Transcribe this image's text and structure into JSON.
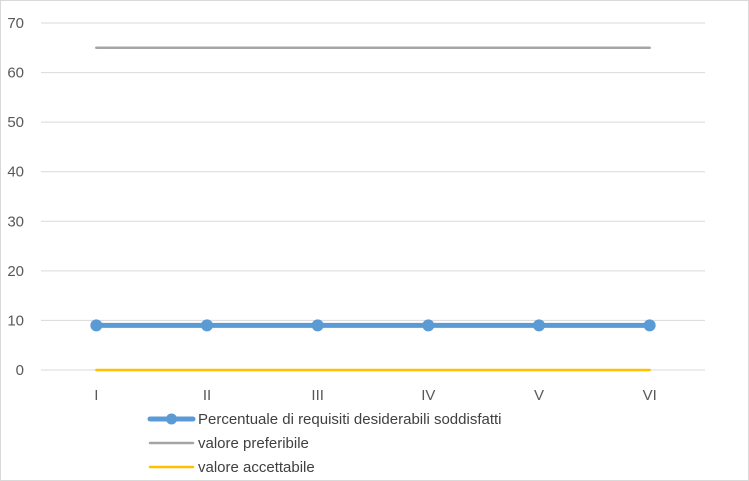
{
  "chart_data": {
    "type": "line",
    "categories": [
      "I",
      "II",
      "III",
      "IV",
      "V",
      "VI"
    ],
    "ylim": [
      0,
      70
    ],
    "yticks": [
      0,
      10,
      20,
      30,
      40,
      50,
      60,
      70
    ],
    "grid": true,
    "legend_position": "bottom",
    "series": [
      {
        "name": "Percentuale di requisiti desiderabili soddisfatti",
        "values": [
          9,
          9,
          9,
          9,
          9,
          9
        ],
        "color": "#5b9bd5",
        "markers": true
      },
      {
        "name": "valore preferibile",
        "values": [
          65,
          65,
          65,
          65,
          65,
          65
        ],
        "color": "#a5a5a5",
        "markers": false
      },
      {
        "name": "valore accettabile",
        "values": [
          0,
          0,
          0,
          0,
          0,
          0
        ],
        "color": "#ffc000",
        "markers": false
      }
    ]
  }
}
